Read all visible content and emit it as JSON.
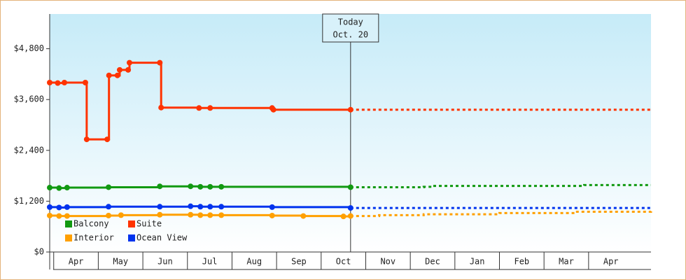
{
  "chart_data": {
    "type": "line",
    "step": true,
    "categories": [
      "Apr",
      "May",
      "Jun",
      "Jul",
      "Aug",
      "Sep",
      "Oct",
      "Nov",
      "Dec",
      "Jan",
      "Feb",
      "Mar",
      "Apr"
    ],
    "xlim": [
      -0.09,
      13.4
    ],
    "ylim": [
      0,
      5620
    ],
    "yticks": [
      {
        "value": 0,
        "label": "$0"
      },
      {
        "value": 1200,
        "label": "$1,200"
      },
      {
        "value": 2400,
        "label": "$2,400"
      },
      {
        "value": 3600,
        "label": "$3,600"
      },
      {
        "value": 4800,
        "label": "$4,800"
      }
    ],
    "annotation": {
      "text": [
        "Today",
        "Oct. 20"
      ],
      "x": 6.66
    },
    "legend": "bottom-left",
    "series": [
      {
        "name": "Balcony",
        "color": "#119911",
        "x": [
          -0.09,
          0.12,
          0.3,
          1.23,
          2.38,
          3.07,
          3.29,
          3.51,
          3.76,
          6.66
        ],
        "values": [
          1520,
          1510,
          1520,
          1530,
          1550,
          1550,
          1540,
          1540,
          1540,
          1530
        ],
        "forecast_x": [
          6.66,
          8.3,
          8.5,
          11.7,
          11.9,
          13.4
        ],
        "forecast": [
          1530,
          1540,
          1560,
          1560,
          1580,
          1580
        ]
      },
      {
        "name": "Suite",
        "color": "#ff3300",
        "x": [
          -0.09,
          0.09,
          0.24,
          0.71,
          0.74,
          1.2,
          1.24,
          1.43,
          1.48,
          1.67,
          1.7,
          2.38,
          2.41,
          3.26,
          3.51,
          4.9,
          4.93,
          6.66
        ],
        "values": [
          4000,
          3990,
          4000,
          4000,
          2660,
          2660,
          4170,
          4170,
          4300,
          4300,
          4470,
          4470,
          3410,
          3400,
          3400,
          3400,
          3360,
          3360
        ],
        "forecast_x": [
          6.66,
          13.4
        ],
        "forecast": [
          3360,
          3360
        ]
      },
      {
        "name": "Interior",
        "color": "#ffa000",
        "x": [
          -0.09,
          0.12,
          0.3,
          1.23,
          1.51,
          2.38,
          3.07,
          3.29,
          3.51,
          3.76,
          4.9,
          5.6,
          6.5,
          6.66
        ],
        "values": [
          860,
          850,
          850,
          860,
          870,
          880,
          880,
          870,
          870,
          870,
          860,
          850,
          840,
          850
        ],
        "forecast_x": [
          6.66,
          7.3,
          8.3,
          10,
          11.7,
          13.4
        ],
        "forecast": [
          850,
          870,
          890,
          920,
          950,
          990
        ]
      },
      {
        "name": "Ocean View",
        "color": "#0033ee",
        "x": [
          -0.09,
          0.12,
          0.3,
          1.23,
          2.38,
          3.07,
          3.29,
          3.51,
          3.76,
          4.9,
          6.66
        ],
        "values": [
          1060,
          1050,
          1060,
          1070,
          1070,
          1080,
          1070,
          1070,
          1070,
          1060,
          1040
        ],
        "forecast_x": [
          6.66,
          13.4
        ],
        "forecast": [
          1040,
          1030
        ]
      }
    ]
  }
}
